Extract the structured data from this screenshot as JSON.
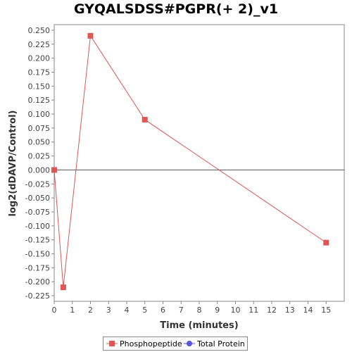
{
  "chart_data": {
    "type": "line",
    "title": "GYQALSDSS#PGPR(+ 2)_v1",
    "xlabel": "Time (minutes)",
    "ylabel": "log2(dDAVP/Control)",
    "xlim": [
      0,
      16
    ],
    "ylim": [
      -0.235,
      0.26
    ],
    "x_ticks": [
      0,
      1,
      2,
      3,
      4,
      5,
      6,
      7,
      8,
      9,
      10,
      11,
      12,
      13,
      14,
      15
    ],
    "y_ticks": [
      -0.225,
      -0.2,
      -0.175,
      -0.15,
      -0.125,
      -0.1,
      -0.075,
      -0.05,
      -0.025,
      0.0,
      0.025,
      0.05,
      0.075,
      0.1,
      0.125,
      0.15,
      0.175,
      0.2,
      0.225,
      0.25
    ],
    "y_tick_labels": [
      "-0.225",
      "-0.200",
      "-0.175",
      "-0.150",
      "-0.125",
      "-0.100",
      "-0.075",
      "-0.050",
      "-0.025",
      "0.000",
      "0.025",
      "0.050",
      "0.075",
      "0.100",
      "0.125",
      "0.150",
      "0.175",
      "0.200",
      "0.225",
      "0.250"
    ],
    "series": [
      {
        "name": "Phosphopeptide",
        "color": "#e05555",
        "marker": "square",
        "x": [
          0,
          0.5,
          2,
          5,
          15
        ],
        "y": [
          0.0,
          -0.21,
          0.24,
          0.09,
          -0.13
        ]
      },
      {
        "name": "Total Protein",
        "color": "#5555e0",
        "marker": "circle",
        "x": [],
        "y": []
      }
    ],
    "zero_line": true,
    "grid": false,
    "legend_position": "bottom"
  }
}
